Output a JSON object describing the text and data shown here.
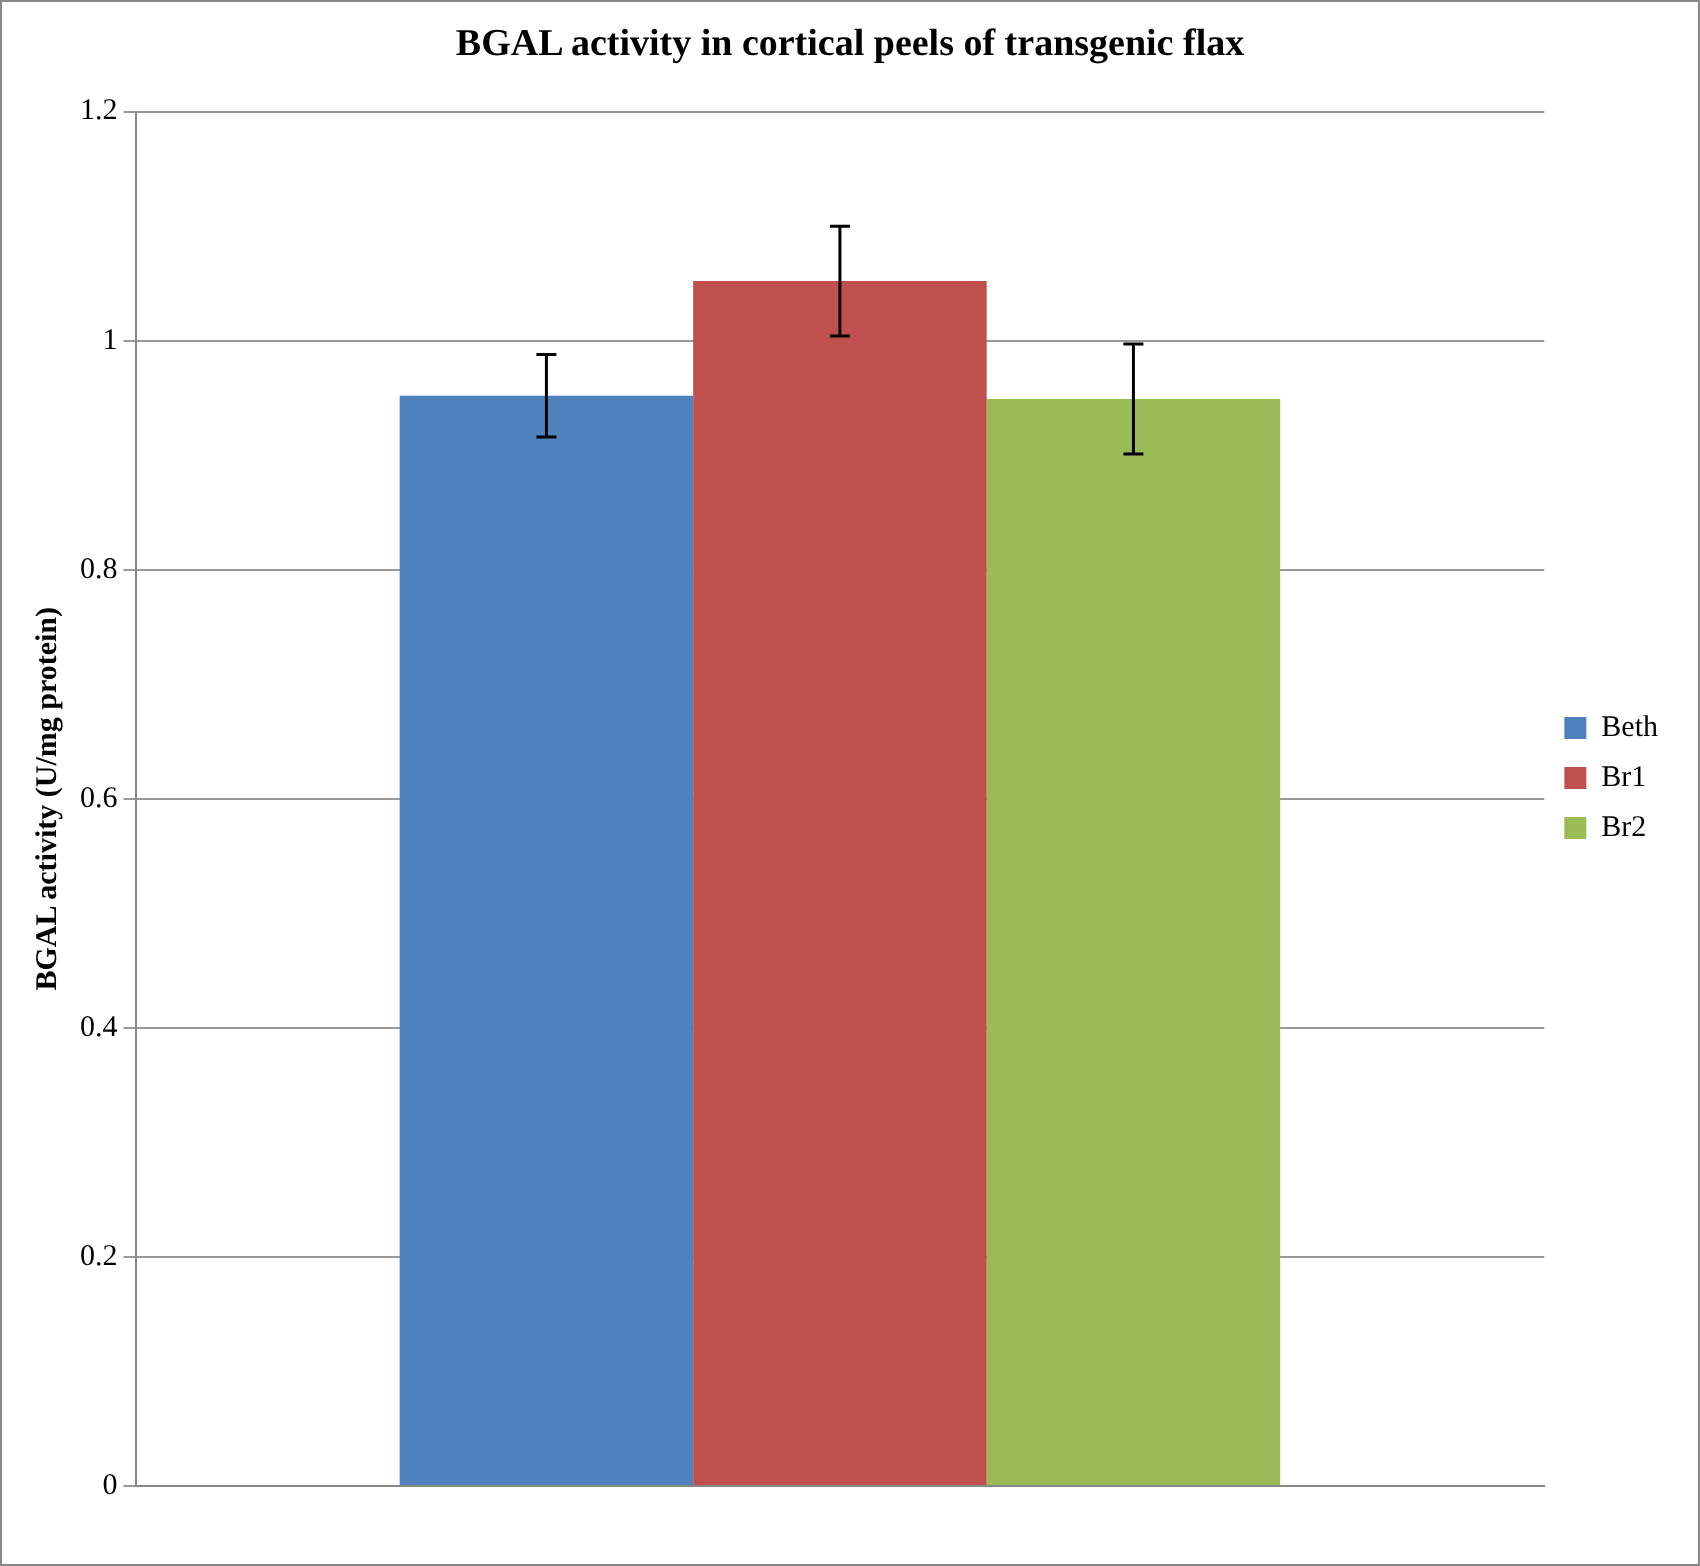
{
  "chart_data": {
    "type": "bar",
    "title": "BGAL activity in cortical peels of transgenic flax",
    "ylabel": "BGAL activity (U/mg protein)",
    "categories": [
      null
    ],
    "series": [
      {
        "name": "Beth",
        "color": "#4f81bd",
        "values": [
          0.952
        ],
        "errors": [
          0.036
        ]
      },
      {
        "name": "Br1",
        "color": "#c0504d",
        "values": [
          1.052
        ],
        "errors": [
          0.048
        ]
      },
      {
        "name": "Br2",
        "color": "#9bbb59",
        "values": [
          0.949
        ],
        "errors": [
          0.048
        ]
      }
    ],
    "ylim": [
      0,
      1.2
    ],
    "yticks": [
      0,
      0.2,
      0.4,
      0.6,
      0.8,
      1,
      1.2
    ],
    "grid": "y",
    "legend": "right"
  }
}
